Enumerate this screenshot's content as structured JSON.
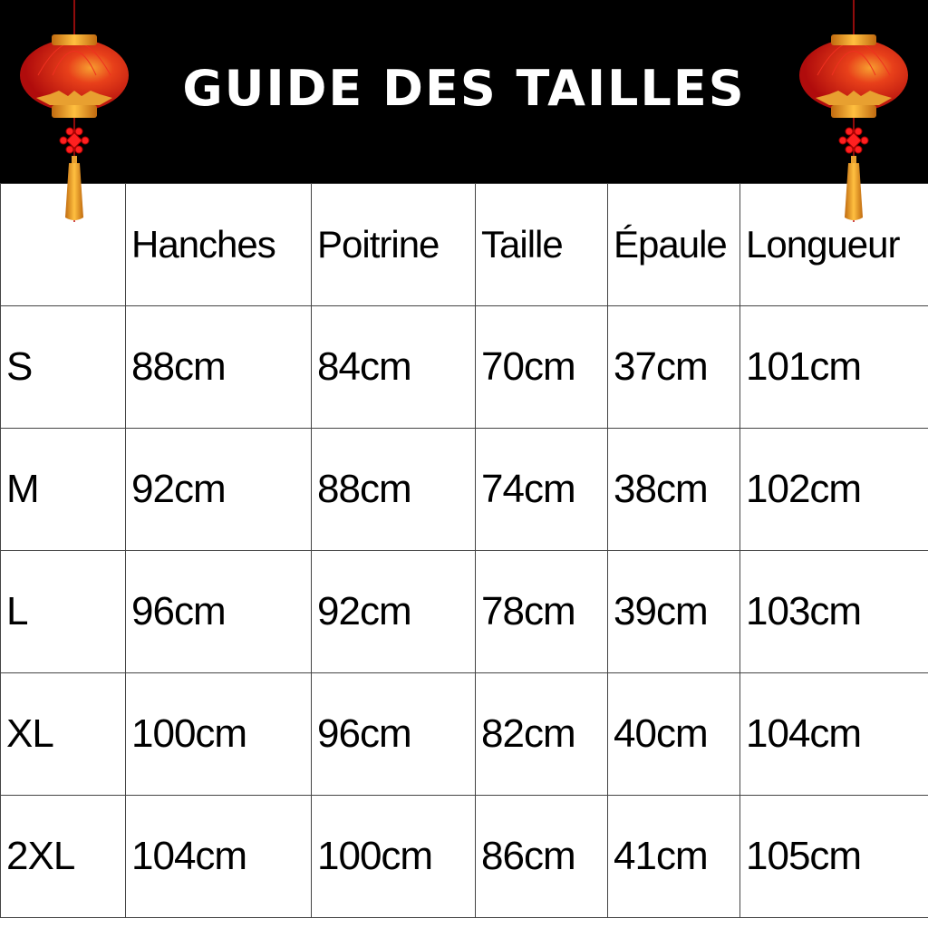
{
  "title": "GUIDE DES TAILLES",
  "colors": {
    "header_bg": "#000000",
    "lantern_red": "#d8120e",
    "lantern_gold": "#f0a020"
  },
  "icons": [
    "chinese-lantern-left",
    "chinese-lantern-right"
  ],
  "table": {
    "headers": [
      "",
      "Hanches",
      "Poitrine",
      "Taille",
      "Épaule",
      "Longueur"
    ],
    "rows": [
      [
        "S",
        "88cm",
        "84cm",
        "70cm",
        "37cm",
        "101cm"
      ],
      [
        "M",
        "92cm",
        "88cm",
        "74cm",
        "38cm",
        "102cm"
      ],
      [
        "L",
        "96cm",
        "92cm",
        "78cm",
        "39cm",
        "103cm"
      ],
      [
        "XL",
        "100cm",
        "96cm",
        "82cm",
        "40cm",
        "104cm"
      ],
      [
        "2XL",
        "104cm",
        "100cm",
        "86cm",
        "41cm",
        "105cm"
      ]
    ]
  }
}
